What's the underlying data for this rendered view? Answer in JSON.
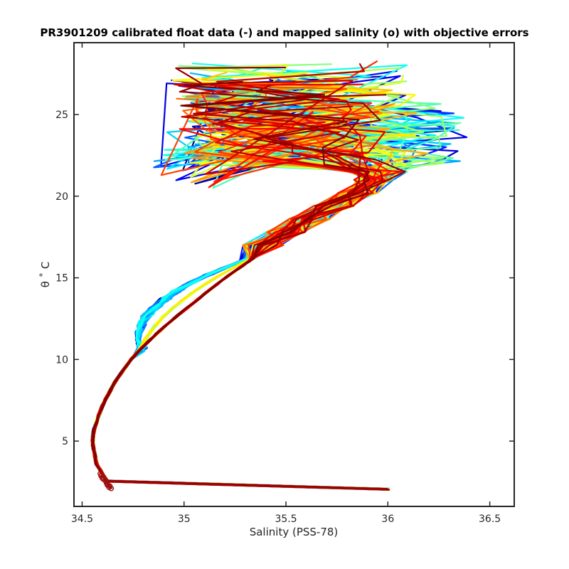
{
  "chart_data": {
    "type": "line",
    "title": "PR3901209 calibrated float data (-) and mapped salinity (o) with objective errors",
    "xlabel": "Salinity (PSS-78)",
    "ylabel": "θ ˚ C",
    "xlim": [
      34.46,
      36.62
    ],
    "ylim": [
      1.0,
      29.4
    ],
    "xticks": [
      34.5,
      35,
      35.5,
      36,
      36.5
    ],
    "yticks": [
      5,
      10,
      15,
      20,
      25
    ],
    "xtick_labels": [
      "34.5",
      "35",
      "35.5",
      "36",
      "36.5"
    ],
    "ytick_labels": [
      "5",
      "10",
      "15",
      "20",
      "25"
    ],
    "grid": false,
    "legend": "none",
    "colormap": "jet",
    "colormap_stops": [
      "#00008f",
      "#0000ff",
      "#0080ff",
      "#00ffff",
      "#80ff80",
      "#ffff00",
      "#ff8000",
      "#ff0000",
      "#800000"
    ],
    "deep_profile": [
      [
        34.64,
        2.1
      ],
      [
        34.62,
        2.6
      ],
      [
        34.6,
        3.0
      ],
      [
        34.57,
        3.6
      ],
      [
        34.56,
        4.3
      ],
      [
        34.55,
        5.0
      ],
      [
        34.56,
        5.8
      ],
      [
        34.58,
        6.5
      ],
      [
        34.6,
        7.2
      ],
      [
        34.63,
        7.9
      ],
      [
        34.66,
        8.6
      ],
      [
        34.7,
        9.3
      ],
      [
        34.74,
        10.0
      ],
      [
        34.79,
        10.7
      ],
      [
        34.84,
        11.4
      ],
      [
        34.89,
        12.0
      ],
      [
        34.95,
        12.7
      ],
      [
        35.02,
        13.4
      ],
      [
        35.1,
        14.2
      ],
      [
        35.2,
        15.1
      ],
      [
        35.3,
        15.9
      ],
      [
        35.4,
        16.7
      ],
      [
        35.5,
        17.5
      ],
      [
        35.62,
        18.3
      ],
      [
        35.74,
        19.1
      ],
      [
        35.86,
        19.9
      ],
      [
        35.95,
        20.6
      ],
      [
        36.0,
        21.2
      ]
    ],
    "thermocline_dip_blue": [
      [
        34.8,
        11.0
      ],
      [
        34.78,
        11.6
      ],
      [
        34.8,
        12.3
      ],
      [
        34.86,
        13.0
      ],
      [
        34.95,
        13.8
      ],
      [
        35.05,
        14.6
      ],
      [
        35.15,
        15.3
      ],
      [
        35.26,
        16.0
      ]
    ],
    "mapped_marker_color": "#a01010",
    "n_profiles": 80,
    "notes": "Spaghetti of T-S profiles colored by profile cycle using jet colormap; upper-ocean branch spreads between salinity 34.8 and 36.5 at theta 20–28."
  }
}
